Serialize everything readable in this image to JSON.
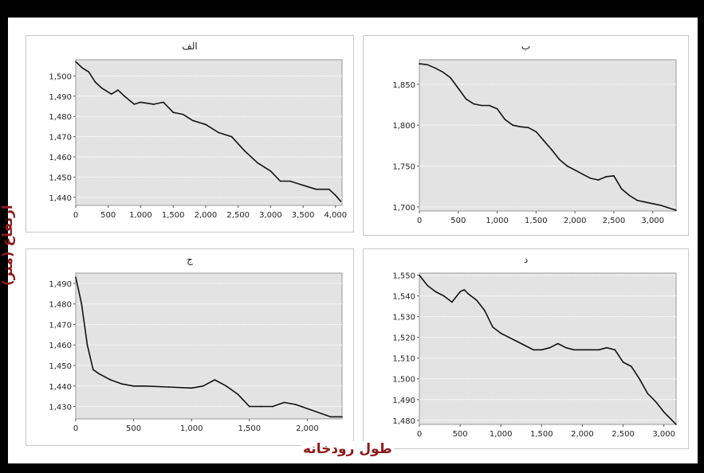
{
  "figure": {
    "y_axis_label": "ارتفاع (متر)",
    "x_axis_label": "طول رودخانه"
  },
  "colors": {
    "plot_bg": "#e3e3e3",
    "line": "#111111",
    "grid": "#ffffff",
    "frame": "#000000",
    "label": "#8b1a1a"
  },
  "chart_data": [
    {
      "type": "line",
      "title": "الف",
      "xlim": [
        0,
        4100
      ],
      "ylim": [
        1436,
        1508
      ],
      "xticks": [
        0,
        500,
        1000,
        1500,
        2000,
        2500,
        3000,
        3500,
        4000
      ],
      "xtick_labels": [
        "0",
        "500",
        "1,000",
        "1,500",
        "2,000",
        "2,500",
        "3,000",
        "3,500",
        "4,000"
      ],
      "yticks": [
        1440,
        1450,
        1460,
        1470,
        1480,
        1490,
        1500
      ],
      "ytick_labels": [
        "1,440",
        "1,450",
        "1,460",
        "1,470",
        "1,480",
        "1,490",
        "1,500"
      ],
      "grid": true,
      "x": [
        0,
        100,
        200,
        300,
        400,
        550,
        650,
        750,
        900,
        1000,
        1200,
        1350,
        1500,
        1650,
        1800,
        2000,
        2200,
        2400,
        2600,
        2800,
        3000,
        3150,
        3300,
        3500,
        3700,
        3900,
        4000,
        4080
      ],
      "y": [
        1507,
        1504,
        1502,
        1497,
        1494,
        1491,
        1493,
        1490,
        1486,
        1487,
        1486,
        1487,
        1482,
        1481,
        1478,
        1476,
        1472,
        1470,
        1463,
        1457,
        1453,
        1448,
        1448,
        1446,
        1444,
        1444,
        1441,
        1438
      ]
    },
    {
      "type": "line",
      "title": "ب",
      "xlim": [
        0,
        3300
      ],
      "ylim": [
        1695,
        1880
      ],
      "xticks": [
        0,
        500,
        1000,
        1500,
        2000,
        2500,
        3000
      ],
      "xtick_labels": [
        "0",
        "500",
        "1,000",
        "1,500",
        "2,000",
        "2,500",
        "3,000"
      ],
      "yticks": [
        1700,
        1750,
        1800,
        1850
      ],
      "ytick_labels": [
        "1,700",
        "1,750",
        "1,800",
        "1,850"
      ],
      "grid": true,
      "x": [
        0,
        100,
        200,
        300,
        400,
        500,
        600,
        700,
        800,
        900,
        1000,
        1100,
        1200,
        1300,
        1400,
        1500,
        1600,
        1700,
        1800,
        1900,
        2000,
        2100,
        2200,
        2300,
        2400,
        2500,
        2600,
        2700,
        2800,
        2900,
        3000,
        3100,
        3200,
        3300
      ],
      "y": [
        1875,
        1874,
        1870,
        1865,
        1858,
        1845,
        1832,
        1826,
        1824,
        1824,
        1820,
        1807,
        1800,
        1798,
        1797,
        1792,
        1781,
        1770,
        1758,
        1750,
        1745,
        1740,
        1735,
        1733,
        1737,
        1738,
        1722,
        1714,
        1708,
        1706,
        1704,
        1702,
        1699,
        1696
      ]
    },
    {
      "type": "line",
      "title": "ج",
      "xlim": [
        0,
        2300
      ],
      "ylim": [
        1424,
        1495
      ],
      "xticks": [
        0,
        500,
        1000,
        1500,
        2000
      ],
      "xtick_labels": [
        "0",
        "500",
        "1,000",
        "1,500",
        "2,000"
      ],
      "yticks": [
        1430,
        1440,
        1450,
        1460,
        1470,
        1480,
        1490
      ],
      "ytick_labels": [
        "1,430",
        "1,440",
        "1,450",
        "1,460",
        "1,470",
        "1,480",
        "1,490"
      ],
      "grid": true,
      "x": [
        0,
        50,
        100,
        150,
        200,
        300,
        400,
        500,
        600,
        800,
        1000,
        1100,
        1200,
        1300,
        1400,
        1500,
        1600,
        1700,
        1800,
        1900,
        2000,
        2100,
        2200,
        2300
      ],
      "y": [
        1493,
        1480,
        1460,
        1448,
        1446,
        1443,
        1441,
        1440,
        1440,
        1439.5,
        1439,
        1440,
        1443,
        1440,
        1436,
        1430,
        1430,
        1430,
        1432,
        1431,
        1429,
        1427,
        1425,
        1425
      ]
    },
    {
      "type": "line",
      "title": "د",
      "xlim": [
        0,
        3150
      ],
      "ylim": [
        1478,
        1551
      ],
      "xticks": [
        0,
        500,
        1000,
        1500,
        2000,
        2500,
        3000
      ],
      "xtick_labels": [
        "0",
        "500",
        "1,000",
        "1,500",
        "2,000",
        "2,500",
        "3,000"
      ],
      "yticks": [
        1480,
        1490,
        1500,
        1510,
        1520,
        1530,
        1540,
        1550
      ],
      "ytick_labels": [
        "1,480",
        "1,490",
        "1,500",
        "1,510",
        "1,520",
        "1,530",
        "1,540",
        "1,550"
      ],
      "grid": true,
      "x": [
        0,
        100,
        200,
        300,
        400,
        500,
        550,
        600,
        700,
        800,
        900,
        1000,
        1100,
        1200,
        1300,
        1400,
        1500,
        1600,
        1700,
        1800,
        1900,
        2000,
        2100,
        2200,
        2300,
        2400,
        2500,
        2600,
        2700,
        2800,
        2900,
        3000,
        3100,
        3150
      ],
      "y": [
        1550,
        1545,
        1542,
        1540,
        1537,
        1542,
        1543,
        1541,
        1538,
        1533,
        1525,
        1522,
        1520,
        1518,
        1516,
        1514,
        1514,
        1515,
        1517,
        1515,
        1514,
        1514,
        1514,
        1514,
        1515,
        1514,
        1508,
        1506,
        1500,
        1493,
        1489,
        1484,
        1480,
        1478
      ]
    }
  ]
}
